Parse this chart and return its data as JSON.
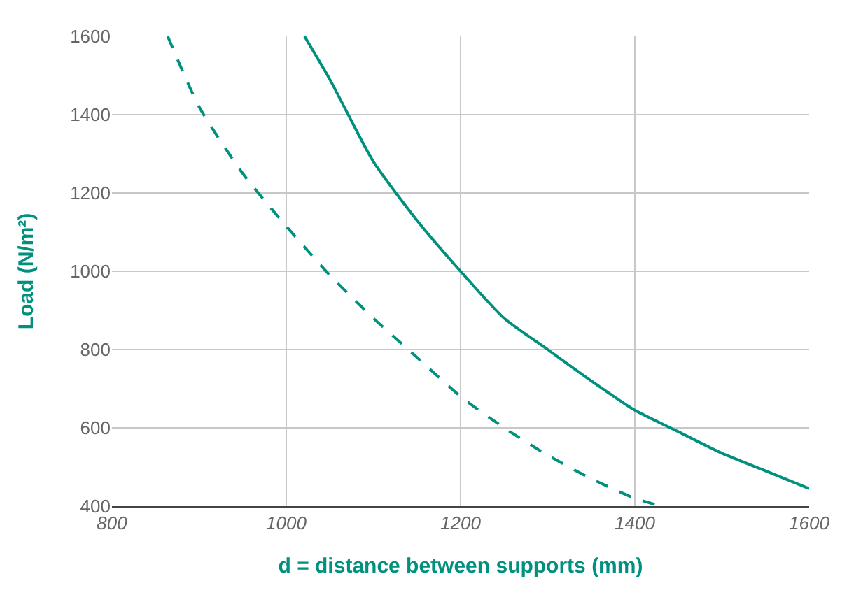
{
  "chart_data": {
    "type": "line",
    "xlabel": "d = distance between supports (mm)",
    "ylabel": "Load (N/m²)",
    "series": [
      {
        "color": "#00917e",
        "line_style": "solid",
        "x": [
          1021,
          1050,
          1100,
          1150,
          1200,
          1250,
          1300,
          1350,
          1400,
          1450,
          1500,
          1550,
          1600
        ],
        "values": [
          1600,
          1490,
          1280,
          1130,
          1000,
          880,
          800,
          720,
          645,
          590,
          535,
          490,
          445
        ]
      },
      {
        "color": "#00917e",
        "line_style": "dashed",
        "x": [
          864,
          900,
          950,
          1000,
          1050,
          1100,
          1150,
          1200,
          1250,
          1300,
          1350,
          1400,
          1430
        ],
        "values": [
          1600,
          1420,
          1250,
          1115,
          990,
          880,
          780,
          680,
          600,
          530,
          470,
          420,
          400
        ]
      }
    ],
    "xlim": [
      800,
      1600
    ],
    "xticks": [
      800,
      1000,
      1200,
      1400,
      1600
    ],
    "ylim": [
      400,
      1600
    ],
    "yticks": [
      400,
      600,
      800,
      1000,
      1200,
      1400,
      1600
    ],
    "grid": true,
    "marker": "none"
  }
}
